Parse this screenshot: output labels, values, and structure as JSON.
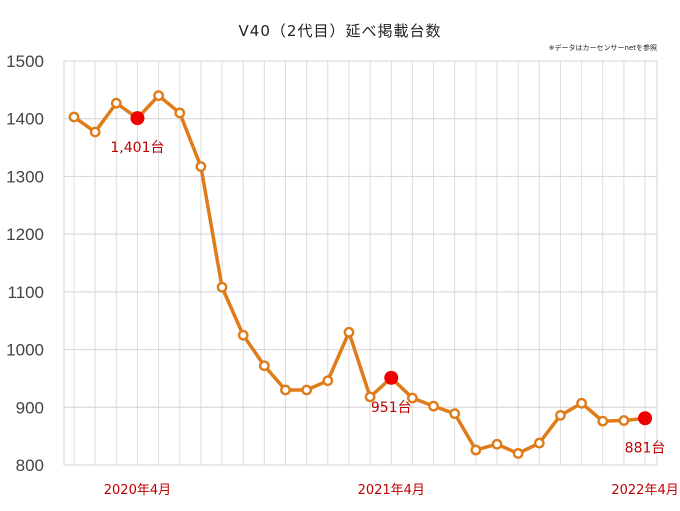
{
  "chart_data": {
    "type": "line",
    "title": "V40（2代目）延べ掲載台数",
    "note": "※データはカーセンサーnetを参照",
    "ylim": [
      800,
      1500
    ],
    "yticks": [
      800,
      900,
      1000,
      1100,
      1200,
      1300,
      1400,
      1500
    ],
    "grid": true,
    "x_labels": [
      {
        "index": 3,
        "label": "2020年4月"
      },
      {
        "index": 15,
        "label": "2021年4月"
      },
      {
        "index": 27,
        "label": "2022年4月"
      }
    ],
    "series": [
      {
        "color": "#e07b1a",
        "values": [
          1403,
          1377,
          1427,
          1401,
          1440,
          1410,
          1317,
          1108,
          1025,
          972,
          930,
          930,
          946,
          1030,
          918,
          951,
          916,
          902,
          889,
          826,
          836,
          820,
          838,
          886,
          907,
          876,
          877,
          881
        ]
      }
    ],
    "highlights": [
      {
        "index": 3,
        "label": "1,401台"
      },
      {
        "index": 15,
        "label": "951台"
      },
      {
        "index": 27,
        "label": "881台"
      }
    ],
    "highlight_color": "#ee0000"
  }
}
